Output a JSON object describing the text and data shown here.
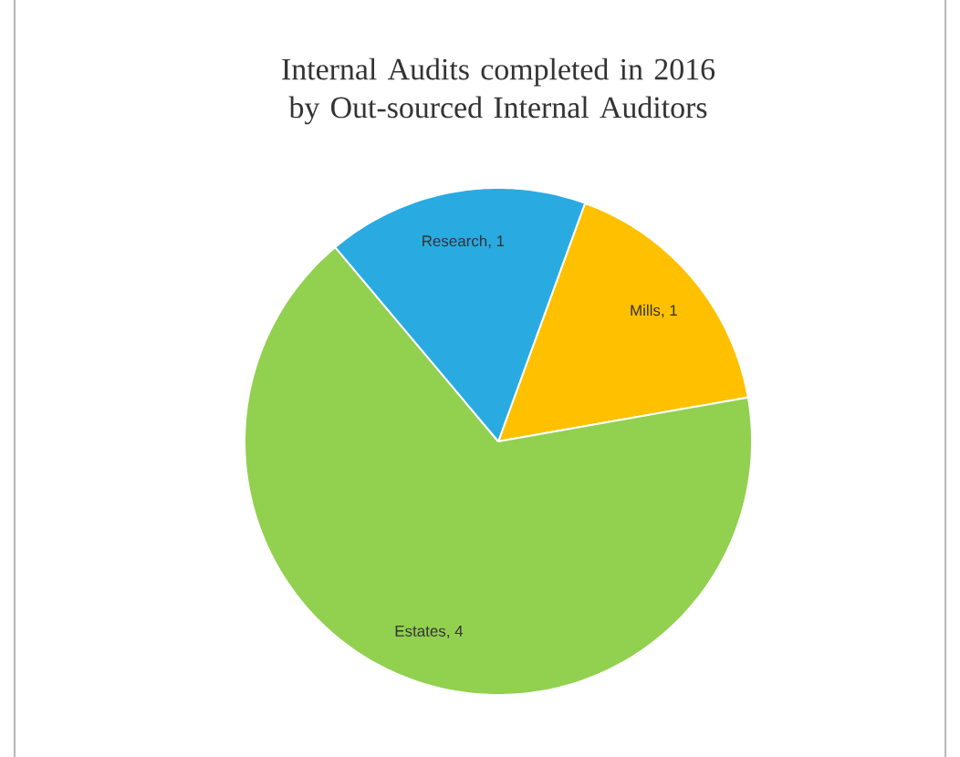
{
  "chart_data": {
    "type": "pie",
    "title": "Internal Audits completed in 2016 by Out-sourced Internal Auditors",
    "categories": [
      "Mills",
      "Estates",
      "Research"
    ],
    "values": [
      1,
      4,
      1
    ],
    "colors": [
      "#ffc000",
      "#92d050",
      "#29abe2"
    ],
    "value_labels": [
      ", 1",
      ", 4",
      ", 1"
    ]
  }
}
